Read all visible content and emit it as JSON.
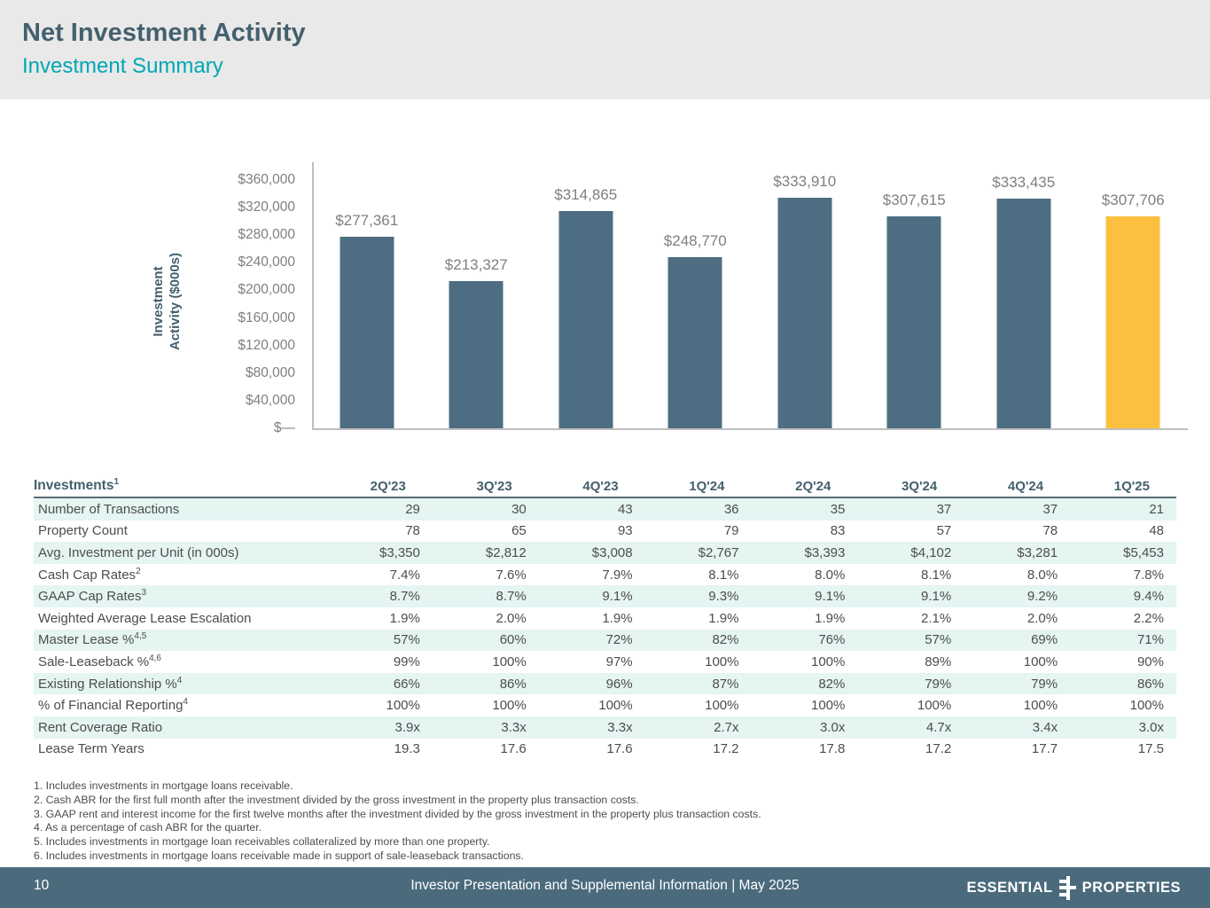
{
  "header": {
    "title": "Net Investment Activity",
    "subtitle": "Investment Summary"
  },
  "chart_data": {
    "type": "bar",
    "title": "",
    "xlabel": "",
    "ylabel": "Investment Activity ($000s)",
    "ylabel_lines": [
      "Investment",
      "Activity ($000s)"
    ],
    "categories": [
      "2Q'23",
      "3Q'23",
      "4Q'23",
      "1Q'24",
      "2Q'24",
      "3Q'24",
      "4Q'24",
      "1Q'25"
    ],
    "values": [
      277361,
      213327,
      314865,
      248770,
      333910,
      307615,
      333435,
      307706
    ],
    "value_labels": [
      "$277,361",
      "$213,327",
      "$314,865",
      "$248,770",
      "$333,910",
      "$307,615",
      "$333,435",
      "$307,706"
    ],
    "ylim": [
      0,
      360000
    ],
    "ytick_labels": [
      "$360,000",
      "$320,000",
      "$280,000",
      "$240,000",
      "$200,000",
      "$160,000",
      "$120,000",
      "$80,000",
      "$40,000",
      "$—"
    ],
    "ytick_values": [
      360000,
      320000,
      280000,
      240000,
      200000,
      160000,
      120000,
      80000,
      40000,
      0
    ],
    "grid": false,
    "legend": "none",
    "bar_color": "#4d6e82",
    "highlight_color": "#fcbf3f",
    "highlight_index": 7
  },
  "table": {
    "header_label": "Investments",
    "header_sup": "1",
    "columns": [
      "2Q'23",
      "3Q'23",
      "4Q'23",
      "1Q'24",
      "2Q'24",
      "3Q'24",
      "4Q'24",
      "1Q'25"
    ],
    "rows": [
      {
        "label": "Number of Transactions",
        "sup": "",
        "values": [
          "29",
          "30",
          "43",
          "36",
          "35",
          "37",
          "37",
          "21"
        ]
      },
      {
        "label": "Property Count",
        "sup": "",
        "values": [
          "78",
          "65",
          "93",
          "79",
          "83",
          "57",
          "78",
          "48"
        ]
      },
      {
        "label": "Avg. Investment per Unit (in 000s)",
        "sup": "",
        "values": [
          "$3,350",
          "$2,812",
          "$3,008",
          "$2,767",
          "$3,393",
          "$4,102",
          "$3,281",
          "$5,453"
        ]
      },
      {
        "label": "Cash Cap Rates",
        "sup": "2",
        "values": [
          "7.4%",
          "7.6%",
          "7.9%",
          "8.1%",
          "8.0%",
          "8.1%",
          "8.0%",
          "7.8%"
        ]
      },
      {
        "label": "GAAP Cap Rates",
        "sup": "3",
        "values": [
          "8.7%",
          "8.7%",
          "9.1%",
          "9.3%",
          "9.1%",
          "9.1%",
          "9.2%",
          "9.4%"
        ]
      },
      {
        "label": "Weighted Average Lease Escalation",
        "sup": "",
        "values": [
          "1.9%",
          "2.0%",
          "1.9%",
          "1.9%",
          "1.9%",
          "2.1%",
          "2.0%",
          "2.2%"
        ]
      },
      {
        "label": "Master Lease %",
        "sup": "4,5",
        "values": [
          "57%",
          "60%",
          "72%",
          "82%",
          "76%",
          "57%",
          "69%",
          "71%"
        ]
      },
      {
        "label": "Sale-Leaseback %",
        "sup": "4,6",
        "values": [
          "99%",
          "100%",
          "97%",
          "100%",
          "100%",
          "89%",
          "100%",
          "90%"
        ]
      },
      {
        "label": "Existing Relationship %",
        "sup": "4",
        "values": [
          "66%",
          "86%",
          "96%",
          "87%",
          "82%",
          "79%",
          "79%",
          "86%"
        ]
      },
      {
        "label": "% of Financial Reporting",
        "sup": "4",
        "values": [
          "100%",
          "100%",
          "100%",
          "100%",
          "100%",
          "100%",
          "100%",
          "100%"
        ]
      },
      {
        "label": "Rent Coverage Ratio",
        "sup": "",
        "values": [
          "3.9x",
          "3.3x",
          "3.3x",
          "2.7x",
          "3.0x",
          "4.7x",
          "3.4x",
          "3.0x"
        ]
      },
      {
        "label": "Lease Term Years",
        "sup": "",
        "values": [
          "19.3",
          "17.6",
          "17.6",
          "17.2",
          "17.8",
          "17.2",
          "17.7",
          "17.5"
        ]
      }
    ]
  },
  "footnotes": [
    "1. Includes investments in mortgage loans receivable.",
    "2. Cash ABR for the first full month after the investment divided by the gross investment in the property plus transaction costs.",
    "3. GAAP rent and interest income for the first twelve months after the investment divided by the gross investment in the property plus transaction costs.",
    "4. As a percentage of cash ABR for the quarter.",
    "5. Includes investments in mortgage loan receivables collateralized by more than one property.",
    "6. Includes investments in mortgage loans receivable made in support of sale-leaseback transactions."
  ],
  "footer": {
    "page_number": "10",
    "center_text": "Investor Presentation and Supplemental Information | May 2025",
    "logo_left": "ESSENTIAL",
    "logo_right": "PROPERTIES"
  },
  "colors": {
    "header_band": "#e9e9e9",
    "title": "#44606e",
    "subtitle_teal": "#00a7b4",
    "bar_slate": "#4d6e82",
    "bar_highlight": "#fcbf3f",
    "table_stripe": "#e4f5f2",
    "footer_band": "#4b6b7d",
    "axis_gray": "#bfbfbf",
    "label_gray": "#7f7f7f"
  }
}
